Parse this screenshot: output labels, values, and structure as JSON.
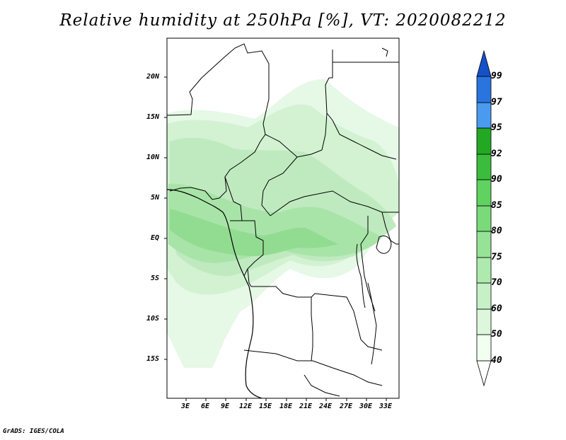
{
  "title": "Relative humidity at 250hPa [%], VT: 2020082212",
  "map": {
    "lat_labels": [
      "20N",
      "15N",
      "10N",
      "5N",
      "EQ",
      "5S",
      "10S",
      "15S"
    ],
    "lon_labels": [
      "3E",
      "6E",
      "9E",
      "12E",
      "15E",
      "18E",
      "21E",
      "24E",
      "27E",
      "30E",
      "33E"
    ]
  },
  "legend": {
    "levels": [
      "40",
      "50",
      "60",
      "70",
      "75",
      "80",
      "85",
      "90",
      "92",
      "95",
      "97",
      "99"
    ],
    "colors": [
      "#f0fff0",
      "#dcf7dc",
      "#c6f0c6",
      "#aeeaae",
      "#96e296",
      "#7ada7a",
      "#5fd25f",
      "#3cbc3c",
      "#23a823",
      "#128c12",
      "#4a9af0",
      "#2a74e0",
      "#1450c8"
    ]
  },
  "footer": "GrADS: IGES/COLA"
}
